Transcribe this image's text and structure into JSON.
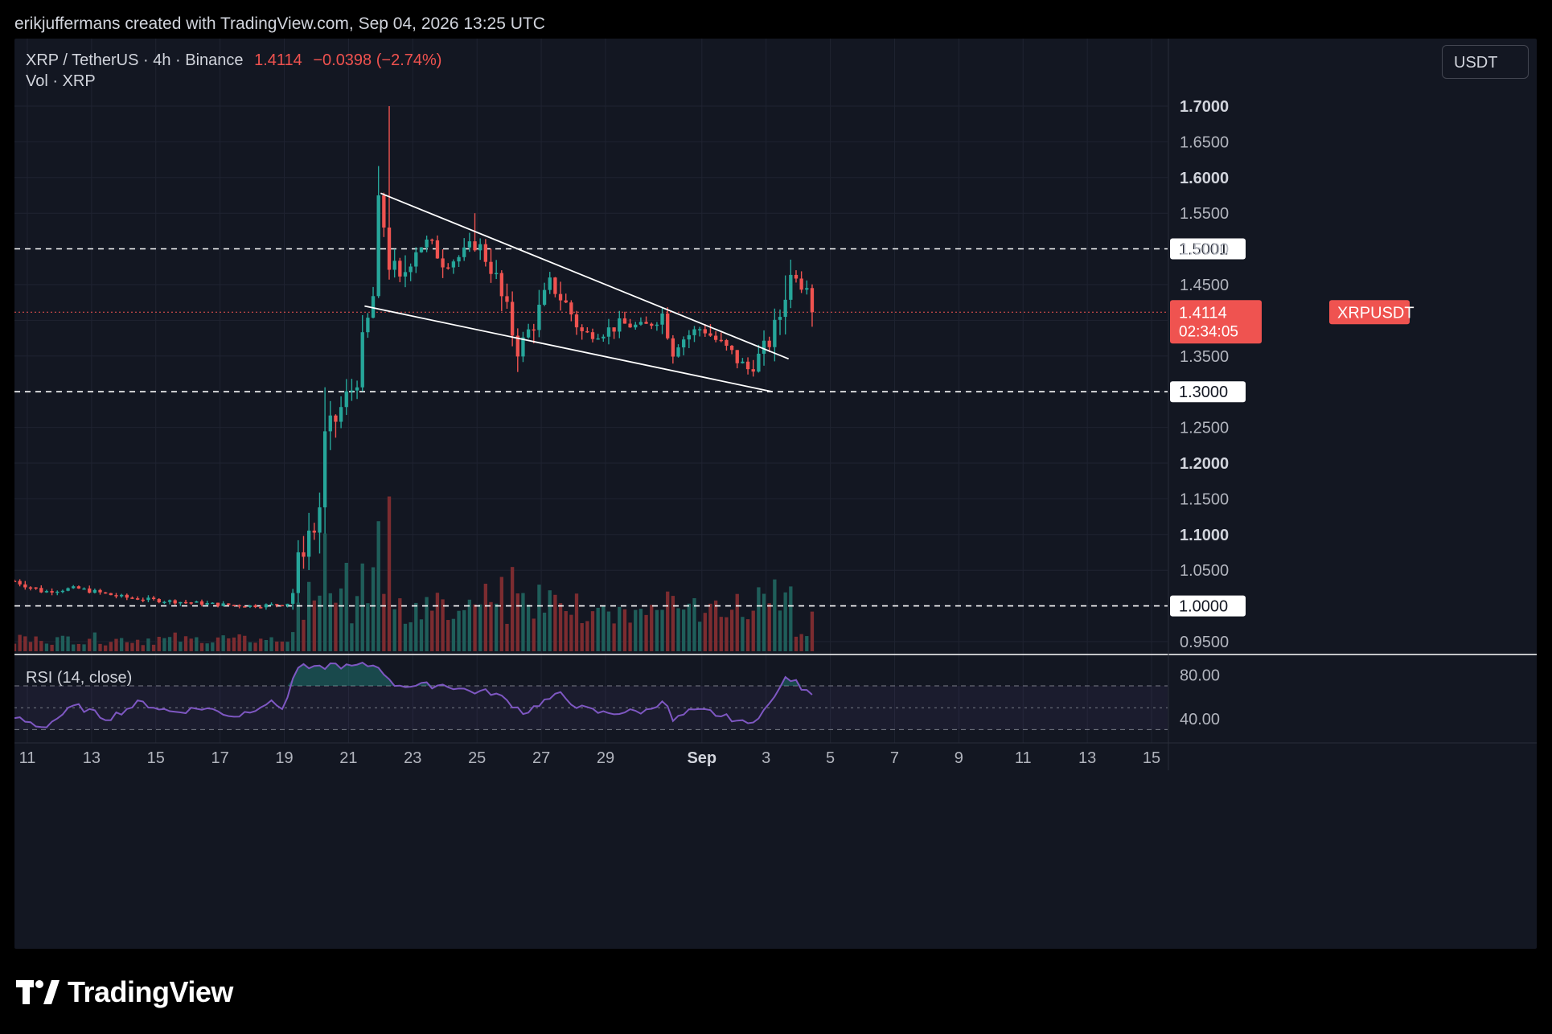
{
  "attribution": "erikjuffermans created with TradingView.com, Sep 04, 2026 13:25 UTC",
  "legend": {
    "symbol": "XRP / TetherUS · 4h · Binance",
    "last": "1.4114",
    "change": "−0.0398 (−2.74%)",
    "volume": "Vol · XRP"
  },
  "currency": "USDT",
  "rsi_label": "RSI (14, close)",
  "price_tag": {
    "symbol": "XRPUSDT",
    "price": "1.4114",
    "countdown": "02:34:05"
  },
  "logo_text": "TradingView",
  "colors": {
    "up": "#26a69a",
    "down": "#ef5350",
    "up_volume": "#1f5e5a",
    "down_volume": "#7c2c30",
    "rsi": "#7e57c2",
    "background": "#131722"
  },
  "chart_data": {
    "type": "candlestick",
    "interval": "4h",
    "price_axis": {
      "min": 0.93,
      "max": 1.73,
      "ticks": [
        "1.7000",
        "1.6500",
        "1.6000",
        "1.5500",
        "1.5000",
        "1.4500",
        "1.4000",
        "1.3500",
        "1.3000",
        "1.2500",
        "1.2000",
        "1.1500",
        "1.1000",
        "1.0500",
        "1.0000",
        "0.9500"
      ],
      "bold_ticks": [
        "1.7000",
        "1.6000",
        "1.2000",
        "1.1000"
      ]
    },
    "levels": [
      {
        "label": "1.5001",
        "value": 1.5001
      },
      {
        "label": "1.3000",
        "value": 1.3
      },
      {
        "label": "1.0000",
        "value": 1.0
      }
    ],
    "last_price": 1.4114,
    "time_axis": {
      "start_day": 10.6,
      "end_day": 46.5,
      "ticks": [
        {
          "label": "11",
          "day": 11
        },
        {
          "label": "13",
          "day": 13
        },
        {
          "label": "15",
          "day": 15
        },
        {
          "label": "17",
          "day": 17
        },
        {
          "label": "19",
          "day": 19
        },
        {
          "label": "21",
          "day": 21
        },
        {
          "label": "23",
          "day": 23
        },
        {
          "label": "25",
          "day": 25
        },
        {
          "label": "27",
          "day": 27
        },
        {
          "label": "29",
          "day": 29
        },
        {
          "label": "Sep",
          "day": 32,
          "bold": true
        },
        {
          "label": "3",
          "day": 34
        },
        {
          "label": "5",
          "day": 36
        },
        {
          "label": "7",
          "day": 38
        },
        {
          "label": "9",
          "day": 40
        },
        {
          "label": "11",
          "day": 42
        },
        {
          "label": "13",
          "day": 44
        },
        {
          "label": "15",
          "day": 46
        }
      ]
    },
    "waypoints": [
      [
        10.6,
        1.035
      ],
      [
        11.5,
        1.02
      ],
      [
        12.5,
        1.025
      ],
      [
        14.0,
        1.012
      ],
      [
        15.0,
        1.008
      ],
      [
        16.0,
        1.005
      ],
      [
        17.0,
        1.002
      ],
      [
        18.0,
        1.0
      ],
      [
        18.8,
        1.002
      ],
      [
        19.2,
        1.005
      ],
      [
        19.5,
        1.07
      ],
      [
        19.8,
        1.11
      ],
      [
        20.0,
        1.1
      ],
      [
        20.3,
        1.23
      ],
      [
        20.6,
        1.26
      ],
      [
        20.9,
        1.29
      ],
      [
        21.2,
        1.31
      ],
      [
        21.5,
        1.37
      ],
      [
        21.8,
        1.44
      ],
      [
        22.0,
        1.56
      ],
      [
        22.3,
        1.48
      ],
      [
        22.6,
        1.45
      ],
      [
        23.0,
        1.5
      ],
      [
        23.5,
        1.51
      ],
      [
        24.0,
        1.48
      ],
      [
        24.5,
        1.49
      ],
      [
        25.0,
        1.51
      ],
      [
        25.5,
        1.47
      ],
      [
        25.9,
        1.41
      ],
      [
        26.3,
        1.36
      ],
      [
        26.8,
        1.4
      ],
      [
        27.3,
        1.45
      ],
      [
        27.8,
        1.42
      ],
      [
        28.3,
        1.38
      ],
      [
        28.9,
        1.383
      ],
      [
        29.5,
        1.395
      ],
      [
        30.2,
        1.39
      ],
      [
        30.8,
        1.41
      ],
      [
        31.1,
        1.365
      ],
      [
        31.6,
        1.38
      ],
      [
        32.0,
        1.39
      ],
      [
        32.5,
        1.37
      ],
      [
        33.0,
        1.35
      ],
      [
        33.4,
        1.33
      ],
      [
        33.8,
        1.35
      ],
      [
        34.1,
        1.37
      ],
      [
        34.4,
        1.4
      ],
      [
        34.6,
        1.45
      ],
      [
        34.9,
        1.47
      ],
      [
        35.1,
        1.455
      ],
      [
        35.4,
        1.452
      ],
      [
        35.5,
        1.4114
      ]
    ],
    "spikes": [
      {
        "day": 21.9,
        "high": 1.6
      },
      {
        "day": 22.2,
        "high": 1.7
      },
      {
        "day": 25.0,
        "high": 1.55
      },
      {
        "day": 34.8,
        "high": 1.485
      }
    ],
    "volume_spikes": [
      {
        "day": 21.0,
        "value": 1.0
      },
      {
        "day": 22.2,
        "value": 1.75
      },
      {
        "day": 21.7,
        "value": 0.95
      },
      {
        "day": 19.5,
        "value": 0.55
      }
    ],
    "rsi": {
      "ticks": [
        {
          "label": "80.00",
          "value": 80
        },
        {
          "label": "40.00",
          "value": 40
        }
      ],
      "min": 20,
      "max": 95,
      "bands": [
        70,
        50,
        30
      ],
      "waypoints": [
        [
          10.6,
          41
        ],
        [
          11.5,
          32
        ],
        [
          12.5,
          52
        ],
        [
          13.5,
          40
        ],
        [
          14.5,
          55
        ],
        [
          15.5,
          46
        ],
        [
          16.5,
          50
        ],
        [
          17.5,
          42
        ],
        [
          18.5,
          55
        ],
        [
          19.0,
          50
        ],
        [
          19.4,
          88
        ],
        [
          20.0,
          85
        ],
        [
          20.5,
          90
        ],
        [
          21.0,
          87
        ],
        [
          21.5,
          89
        ],
        [
          22.0,
          88
        ],
        [
          22.3,
          72
        ],
        [
          23.0,
          70
        ],
        [
          24.0,
          71
        ],
        [
          24.8,
          65
        ],
        [
          25.5,
          64
        ],
        [
          26.0,
          55
        ],
        [
          26.5,
          45
        ],
        [
          27.0,
          55
        ],
        [
          27.6,
          62
        ],
        [
          28.2,
          50
        ],
        [
          28.9,
          45
        ],
        [
          29.5,
          46
        ],
        [
          30.3,
          47
        ],
        [
          30.8,
          58
        ],
        [
          31.1,
          38
        ],
        [
          31.6,
          46
        ],
        [
          32.2,
          47
        ],
        [
          32.6,
          42
        ],
        [
          33.0,
          40
        ],
        [
          33.4,
          34
        ],
        [
          33.8,
          44
        ],
        [
          34.2,
          55
        ],
        [
          34.5,
          75
        ],
        [
          34.8,
          76
        ],
        [
          35.1,
          69
        ],
        [
          35.4,
          67
        ],
        [
          35.5,
          58
        ]
      ]
    },
    "pattern_lines": [
      {
        "from": [
          22.0,
          1.578
        ],
        "to": [
          34.7,
          1.346
        ]
      },
      {
        "from": [
          21.5,
          1.42
        ],
        "to": [
          34.2,
          1.3
        ]
      }
    ]
  }
}
